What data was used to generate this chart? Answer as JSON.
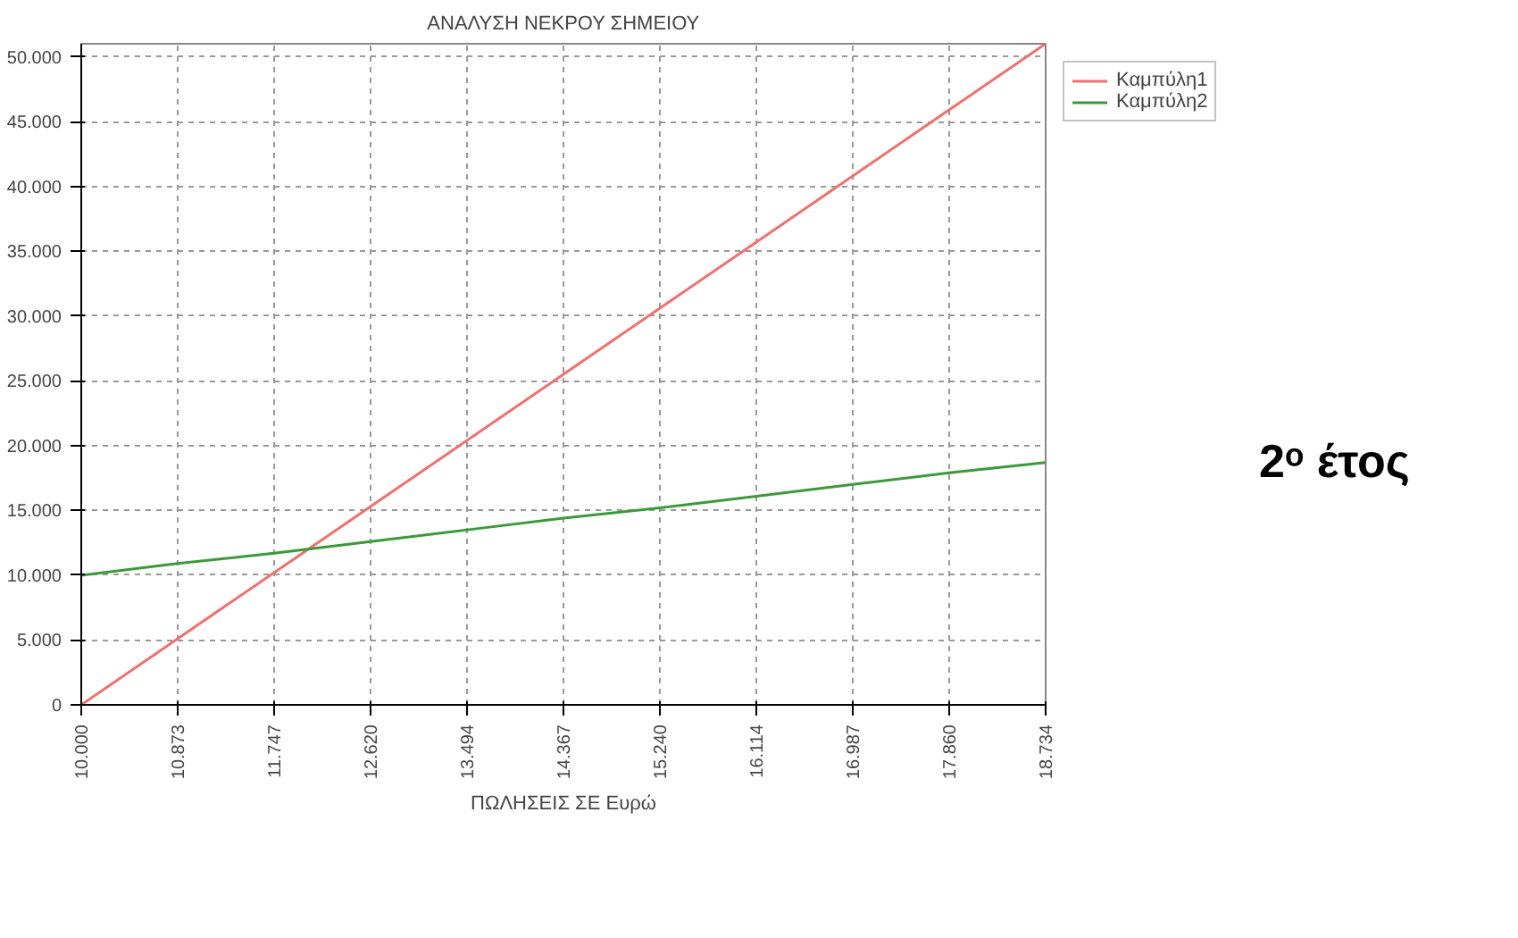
{
  "chart_data": {
    "type": "line",
    "title": "ΑΝΑΛΥΣΗ ΝΕΚΡΟΥ ΣΗΜΕΙΟΥ",
    "xlabel": "ΠΩΛΗΣΕΙΣ ΣΕ Ευρώ",
    "x": [
      10000,
      10873,
      11747,
      12620,
      13494,
      14367,
      15240,
      16114,
      16987,
      17860,
      18734
    ],
    "series": [
      {
        "name": "Καμπύλη1",
        "color": "#f07070",
        "values": [
          0,
          5100,
          10200,
          15300,
          20400,
          25500,
          30600,
          35700,
          40800,
          45900,
          51000
        ]
      },
      {
        "name": "Καμπύλη2",
        "color": "#3a9a3a",
        "values": [
          10000,
          10900,
          11700,
          12600,
          13500,
          14400,
          15200,
          16100,
          17000,
          17900,
          18700
        ]
      }
    ],
    "xlim": [
      10000,
      18734
    ],
    "xticks": [
      {
        "value": 10000,
        "label": "10.000"
      },
      {
        "value": 10873,
        "label": "10.873"
      },
      {
        "value": 11747,
        "label": "11.747"
      },
      {
        "value": 12620,
        "label": "12.620"
      },
      {
        "value": 13494,
        "label": "13.494"
      },
      {
        "value": 14367,
        "label": "14.367"
      },
      {
        "value": 15240,
        "label": "15.240"
      },
      {
        "value": 16114,
        "label": "16.114"
      },
      {
        "value": 16987,
        "label": "16.987"
      },
      {
        "value": 17860,
        "label": "17.860"
      },
      {
        "value": 18734,
        "label": "18.734"
      }
    ],
    "ylim": [
      0,
      51000
    ],
    "yticks": [
      0,
      {
        "value": 5000,
        "label": "5.000"
      },
      {
        "value": 10000,
        "label": "10.000"
      },
      {
        "value": 15000,
        "label": "15.000"
      },
      {
        "value": 20000,
        "label": "20.000"
      },
      {
        "value": 25000,
        "label": "25.000"
      },
      {
        "value": 30000,
        "label": "30.000"
      },
      {
        "value": 35000,
        "label": "35.000"
      },
      {
        "value": 40000,
        "label": "40.000"
      },
      {
        "value": 45000,
        "label": "45.000"
      },
      {
        "value": 50000,
        "label": "50.000"
      }
    ],
    "grid": true,
    "legend": "top right",
    "line_style": "solid",
    "annotations": [
      "2ᵒ έτος"
    ]
  }
}
